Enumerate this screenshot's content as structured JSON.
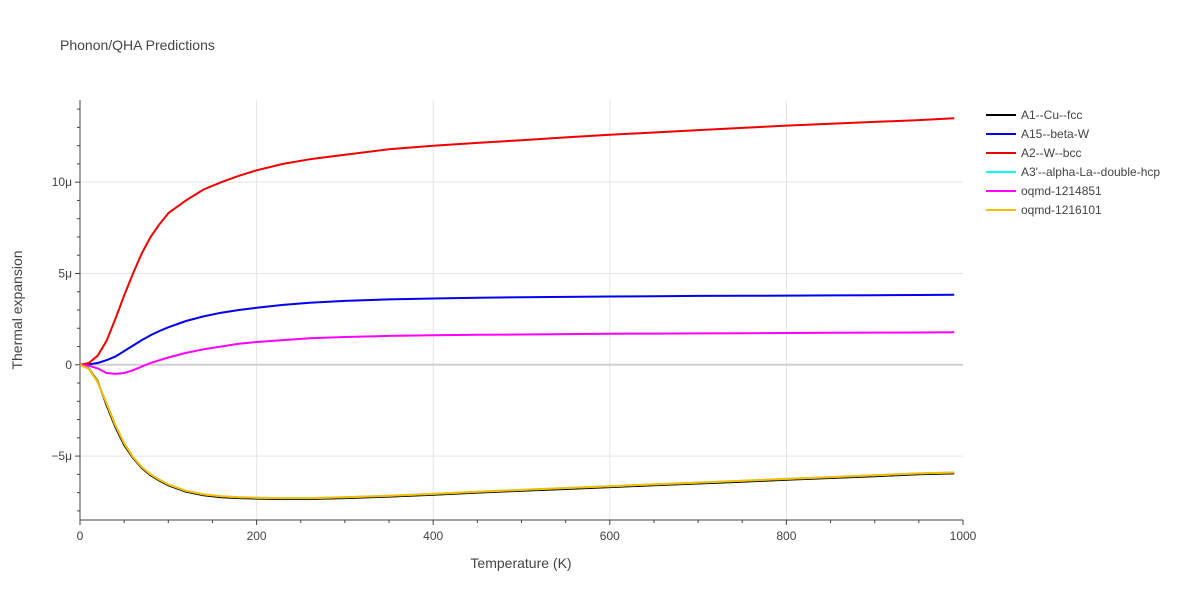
{
  "chart_data": {
    "type": "line",
    "title": "Phonon/QHA Predictions",
    "xlabel": "Temperature (K)",
    "ylabel": "Thermal expansion",
    "xlim": [
      0,
      1000
    ],
    "ylim": [
      -8.5,
      14.5
    ],
    "x_ticks": [
      0,
      200,
      400,
      600,
      800,
      1000
    ],
    "x_tick_labels": [
      "0",
      "200",
      "400",
      "600",
      "800",
      "1000"
    ],
    "y_ticks": [
      -5,
      0,
      5,
      10
    ],
    "y_tick_labels": [
      "−5μ",
      "0",
      "5μ",
      "10μ"
    ],
    "y_unit_note": "μ = 1e-6 (values in units of 1e-6 /K)",
    "grid": true,
    "legend_position": "right",
    "x": [
      0,
      10,
      20,
      30,
      40,
      50,
      60,
      70,
      80,
      90,
      100,
      120,
      140,
      160,
      180,
      200,
      230,
      260,
      300,
      350,
      400,
      450,
      500,
      550,
      600,
      650,
      700,
      750,
      800,
      850,
      900,
      950,
      990
    ],
    "series": [
      {
        "name": "A1--Cu--fcc",
        "color": "#000000",
        "values": [
          0,
          -0.2,
          -0.9,
          -2.2,
          -3.4,
          -4.4,
          -5.1,
          -5.65,
          -6.05,
          -6.35,
          -6.6,
          -6.95,
          -7.15,
          -7.25,
          -7.3,
          -7.33,
          -7.35,
          -7.35,
          -7.3,
          -7.22,
          -7.12,
          -7.0,
          -6.9,
          -6.8,
          -6.7,
          -6.6,
          -6.5,
          -6.4,
          -6.3,
          -6.2,
          -6.1,
          -6.0,
          -5.95
        ]
      },
      {
        "name": "A15--beta-W",
        "color": "#0000ee",
        "values": [
          0,
          0.02,
          0.1,
          0.25,
          0.45,
          0.75,
          1.05,
          1.35,
          1.62,
          1.85,
          2.05,
          2.4,
          2.65,
          2.85,
          3.0,
          3.12,
          3.28,
          3.4,
          3.5,
          3.58,
          3.63,
          3.67,
          3.7,
          3.72,
          3.74,
          3.75,
          3.77,
          3.78,
          3.79,
          3.8,
          3.81,
          3.82,
          3.83
        ]
      },
      {
        "name": "A2--W--bcc",
        "color": "#ee0000",
        "values": [
          0,
          0.1,
          0.5,
          1.3,
          2.5,
          3.8,
          5.0,
          6.1,
          7.0,
          7.7,
          8.3,
          9.0,
          9.6,
          10.0,
          10.35,
          10.65,
          11.0,
          11.25,
          11.5,
          11.8,
          12.0,
          12.15,
          12.3,
          12.45,
          12.6,
          12.72,
          12.85,
          12.97,
          13.1,
          13.2,
          13.3,
          13.4,
          13.5
        ]
      },
      {
        "name": "A3'--alpha-La--double-hcp",
        "color": "#00ffff",
        "values": [
          0,
          -0.22,
          -0.95,
          -2.1,
          -3.3,
          -4.3,
          -5.05,
          -5.6,
          -6.0,
          -6.3,
          -6.55,
          -6.9,
          -7.1,
          -7.2,
          -7.25,
          -7.28,
          -7.3,
          -7.3,
          -7.25,
          -7.17,
          -7.07,
          -6.95,
          -6.85,
          -6.75,
          -6.65,
          -6.55,
          -6.45,
          -6.35,
          -6.25,
          -6.15,
          -6.05,
          -5.95,
          -5.9
        ]
      },
      {
        "name": "oqmd-1214851",
        "color": "#ff00ff",
        "values": [
          0,
          -0.05,
          -0.2,
          -0.45,
          -0.5,
          -0.45,
          -0.3,
          -0.1,
          0.1,
          0.25,
          0.4,
          0.65,
          0.85,
          1.0,
          1.15,
          1.25,
          1.35,
          1.45,
          1.52,
          1.58,
          1.62,
          1.64,
          1.66,
          1.68,
          1.7,
          1.71,
          1.72,
          1.73,
          1.74,
          1.75,
          1.76,
          1.77,
          1.78
        ]
      },
      {
        "name": "oqmd-1216101",
        "color": "#ffbb00",
        "values": [
          0,
          -0.22,
          -0.95,
          -2.1,
          -3.3,
          -4.3,
          -5.05,
          -5.6,
          -6.0,
          -6.3,
          -6.55,
          -6.9,
          -7.1,
          -7.2,
          -7.25,
          -7.28,
          -7.3,
          -7.3,
          -7.25,
          -7.17,
          -7.07,
          -6.95,
          -6.85,
          -6.75,
          -6.65,
          -6.55,
          -6.45,
          -6.35,
          -6.25,
          -6.15,
          -6.05,
          -5.95,
          -5.9
        ]
      }
    ]
  }
}
